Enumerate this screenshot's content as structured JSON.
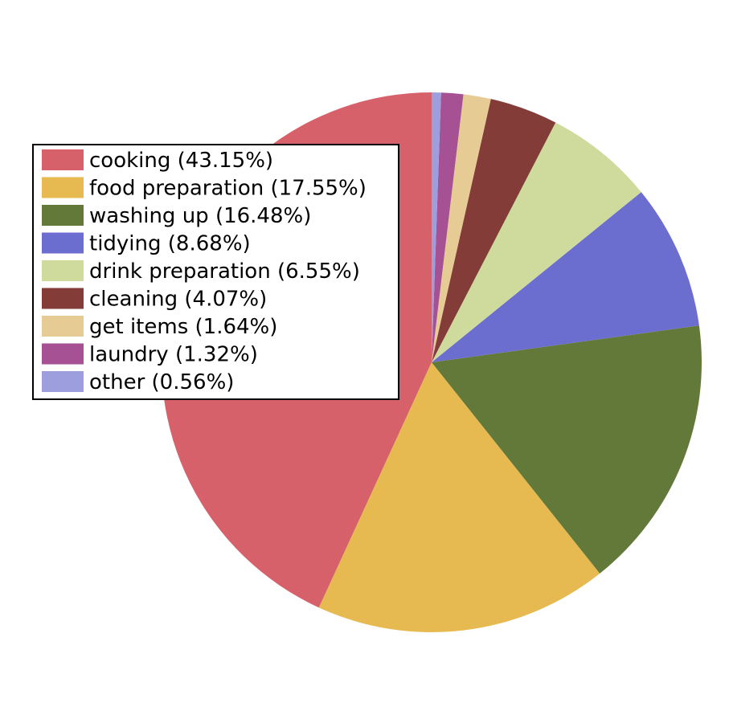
{
  "chart_data": {
    "type": "pie",
    "title": "",
    "start_angle_deg": 90,
    "direction": "counterclockwise",
    "legend_position": "upper-left",
    "slices": [
      {
        "label": "cooking",
        "percent": 43.15,
        "legend_text": "cooking (43.15%)",
        "color": "#d7616a"
      },
      {
        "label": "food preparation",
        "percent": 17.55,
        "legend_text": "food preparation (17.55%)",
        "color": "#e7b951"
      },
      {
        "label": "washing up",
        "percent": 16.48,
        "legend_text": "washing up (16.48%)",
        "color": "#637939"
      },
      {
        "label": "tidying",
        "percent": 8.68,
        "legend_text": "tidying (8.68%)",
        "color": "#6b6ecf"
      },
      {
        "label": "drink preparation",
        "percent": 6.55,
        "legend_text": "drink preparation (6.55%)",
        "color": "#cfdb9c"
      },
      {
        "label": "cleaning",
        "percent": 4.07,
        "legend_text": "cleaning (4.07%)",
        "color": "#843c39"
      },
      {
        "label": "get items",
        "percent": 1.64,
        "legend_text": "get items (1.64%)",
        "color": "#e7cb94"
      },
      {
        "label": "laundry",
        "percent": 1.32,
        "legend_text": "laundry (1.32%)",
        "color": "#a55194"
      },
      {
        "label": "other",
        "percent": 0.56,
        "legend_text": "other (0.56%)",
        "color": "#9c9ede"
      }
    ]
  }
}
